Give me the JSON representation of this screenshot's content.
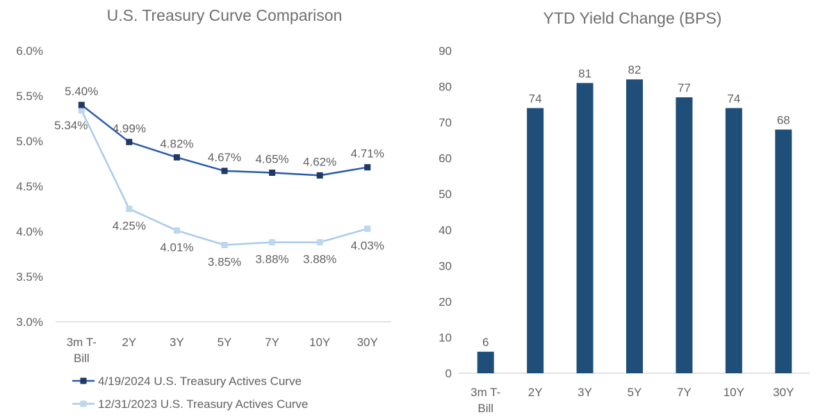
{
  "page": {
    "background": "#ffffff"
  },
  "colors": {
    "title_text": "#6f6f6f",
    "label_text": "#616161",
    "axis_line": "#d9d9d9",
    "dark_line": "#2a5caa",
    "dark_marker": "#1f3864",
    "light_line": "#aacbec",
    "light_marker": "#bdd7ee",
    "bar_fill": "#1f4e79"
  },
  "chart_data": [
    {
      "type": "line",
      "title": "U.S. Treasury Curve Comparison",
      "categories": [
        "3m T-Bill",
        "2Y",
        "3Y",
        "5Y",
        "7Y",
        "10Y",
        "30Y"
      ],
      "category_lines": [
        [
          "3m T-",
          "Bill"
        ],
        [
          "2Y"
        ],
        [
          "3Y"
        ],
        [
          "5Y"
        ],
        [
          "7Y"
        ],
        [
          "10Y"
        ],
        [
          "30Y"
        ]
      ],
      "ylim": [
        3.0,
        6.0
      ],
      "ytick_step": 0.5,
      "ytick_labels": [
        "3.0%",
        "3.5%",
        "4.0%",
        "4.5%",
        "5.0%",
        "5.5%",
        "6.0%"
      ],
      "grid": false,
      "legend_position": "bottom-left",
      "series": [
        {
          "name": "4/19/2024 U.S. Treasury Actives Curve",
          "color_key": "dark",
          "values": [
            5.4,
            4.99,
            4.82,
            4.67,
            4.65,
            4.62,
            4.71
          ],
          "point_labels": [
            "5.40%",
            "4.99%",
            "4.82%",
            "4.67%",
            "4.65%",
            "4.62%",
            "4.71%"
          ],
          "label_position": "above"
        },
        {
          "name": "12/31/2023 U.S. Treasury Actives Curve",
          "color_key": "light",
          "values": [
            5.34,
            4.25,
            4.01,
            3.85,
            3.88,
            3.88,
            4.03
          ],
          "point_labels": [
            "5.34%",
            "4.25%",
            "4.01%",
            "3.85%",
            "3.88%",
            "3.88%",
            "4.03%"
          ],
          "label_position": "below"
        }
      ]
    },
    {
      "type": "bar",
      "title": "YTD Yield Change (BPS)",
      "categories": [
        "3m T-Bill",
        "2Y",
        "3Y",
        "5Y",
        "7Y",
        "10Y",
        "30Y"
      ],
      "category_lines": [
        [
          "3m T-",
          "Bill"
        ],
        [
          "2Y"
        ],
        [
          "3Y"
        ],
        [
          "5Y"
        ],
        [
          "7Y"
        ],
        [
          "10Y"
        ],
        [
          "30Y"
        ]
      ],
      "values": [
        6,
        74,
        81,
        82,
        77,
        74,
        68
      ],
      "bar_labels": [
        "6",
        "74",
        "81",
        "82",
        "77",
        "74",
        "68"
      ],
      "ylim": [
        0,
        90
      ],
      "ytick_step": 10,
      "ytick_labels": [
        "0",
        "10",
        "20",
        "30",
        "40",
        "50",
        "60",
        "70",
        "80",
        "90"
      ],
      "grid": false,
      "legend_position": "none"
    }
  ]
}
